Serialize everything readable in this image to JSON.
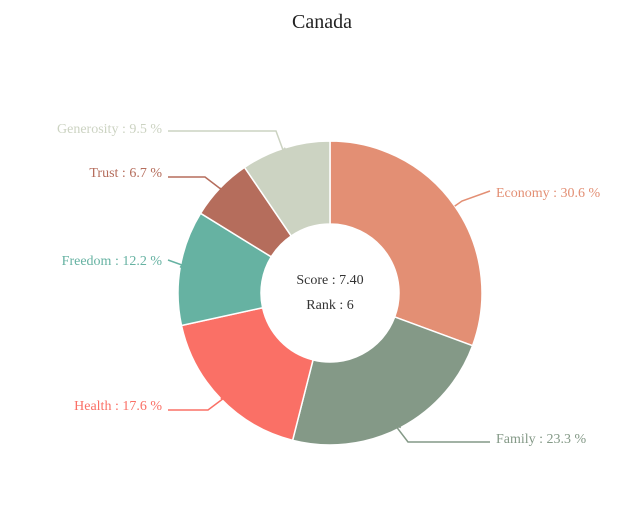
{
  "chart_data": {
    "type": "pie",
    "title": "Canada",
    "center": {
      "score_text": "Score : 7.40",
      "rank_text": "Rank : 6"
    },
    "slices": [
      {
        "name": "Economy",
        "label": "Economy : 30.6 %",
        "value": 30.6,
        "color": "#e38f74"
      },
      {
        "name": "Family",
        "label": "Family : 23.3 %",
        "value": 23.3,
        "color": "#849987"
      },
      {
        "name": "Health",
        "label": "Health : 17.6 %",
        "value": 17.6,
        "color": "#fa7066"
      },
      {
        "name": "Freedom",
        "label": "Freedom : 12.2 %",
        "value": 12.2,
        "color": "#66b2a2"
      },
      {
        "name": "Trust",
        "label": "Trust : 6.7 %",
        "value": 6.7,
        "color": "#b56d5c"
      },
      {
        "name": "Generosity",
        "label": "Generosity : 9.5 %",
        "value": 9.5,
        "color": "#ccd3c2"
      }
    ],
    "legend": "none"
  }
}
